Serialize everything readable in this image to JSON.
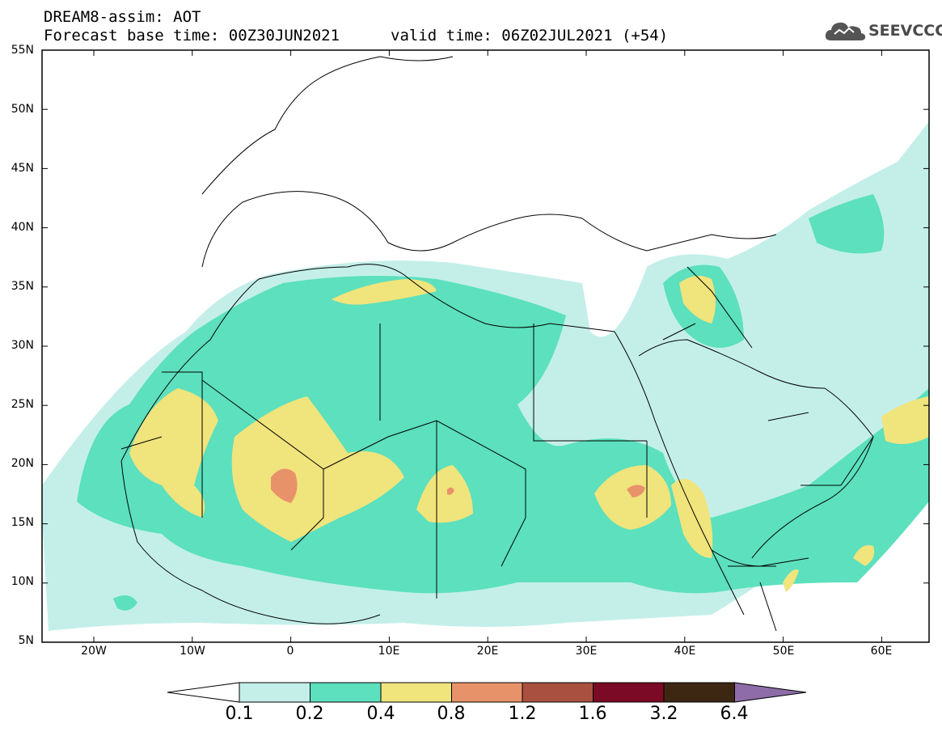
{
  "header": {
    "line1": "DREAM8-assim: AOT",
    "line2": "Forecast base time: 00Z30JUN2021",
    "valid": "valid time: 06Z02JUL2021 (+54)",
    "logo_text": "SEEVCCC"
  },
  "map": {
    "projection": "lat-lon",
    "lon_range": [
      "25W",
      "65E"
    ],
    "lat_range": [
      "5N",
      "55N"
    ],
    "y_ticks": [
      "55N",
      "50N",
      "45N",
      "40N",
      "35N",
      "30N",
      "25N",
      "20N",
      "15N",
      "10N",
      "5N"
    ],
    "x_ticks": [
      "20W",
      "10W",
      "0",
      "10E",
      "20E",
      "30E",
      "40E",
      "50E",
      "60E"
    ]
  },
  "colorbar": {
    "labels": [
      "0.1",
      "0.2",
      "0.4",
      "0.8",
      "1.2",
      "1.6",
      "3.2",
      "6.4"
    ],
    "colors": [
      "#ffffff",
      "#c4efe9",
      "#5ce0bd",
      "#f0e47c",
      "#e8926a",
      "#a95040",
      "#7a0a25",
      "#3e2712",
      "#8e6ca8"
    ]
  }
}
